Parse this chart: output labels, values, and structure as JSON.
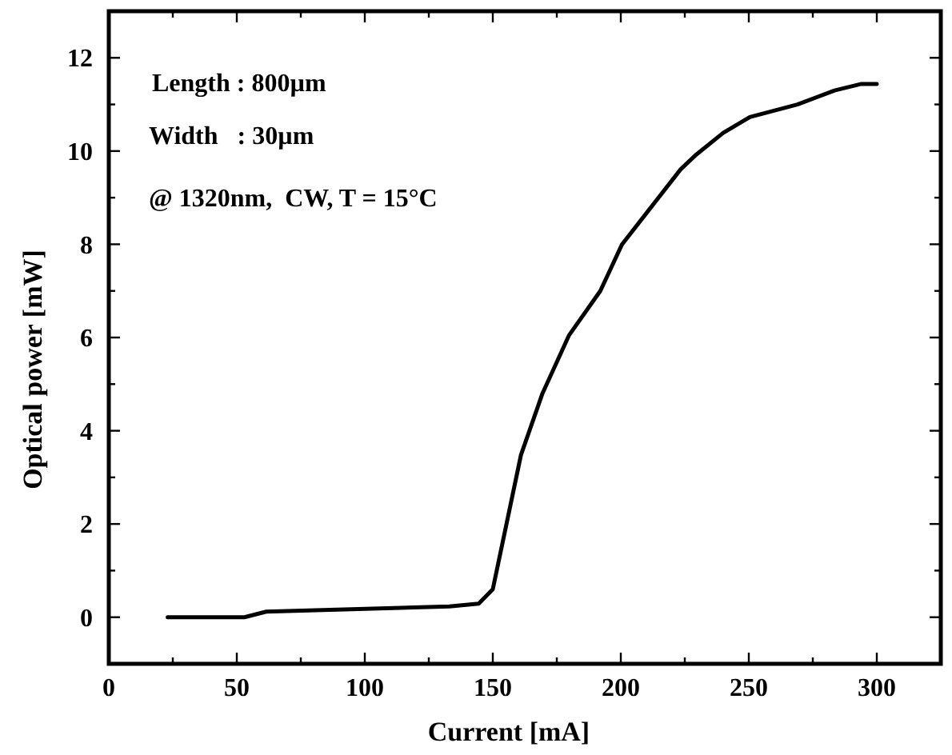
{
  "chart_data": {
    "type": "line",
    "xlabel": "Current [mA]",
    "ylabel": "Optical power [mW]",
    "annotations": [
      "Length : 800µm",
      "Width   : 30µm",
      "@ 1320nm,  CW, T = 15°C"
    ],
    "x": [
      23,
      53,
      61.5,
      133,
      144.5,
      150,
      161,
      169.4,
      179.8,
      192,
      200.5,
      210.9,
      223.4,
      229.6,
      240,
      250.4,
      269,
      283.5,
      294,
      300
    ],
    "series": [
      {
        "color": "#000000",
        "values": [
          0,
          0,
          0.12,
          0.23,
          0.29,
          0.6,
          3.48,
          4.8,
          6.05,
          7.0,
          8.0,
          8.73,
          9.61,
          9.93,
          10.39,
          10.73,
          11.0,
          11.3,
          11.44,
          11.44
        ]
      }
    ],
    "xlim": [
      0,
      325
    ],
    "ylim": [
      -1,
      13
    ],
    "xticks": [
      0,
      {
        "value": 25,
        "label": null
      },
      50,
      {
        "value": 75,
        "label": null
      },
      100,
      {
        "value": 125,
        "label": null
      },
      150,
      {
        "value": 175,
        "label": null
      },
      200,
      {
        "value": 225,
        "label": null
      },
      250,
      {
        "value": 275,
        "label": null
      },
      300
    ],
    "yticks": [
      0,
      {
        "value": 1,
        "label": null
      },
      2,
      {
        "value": 3,
        "label": null
      },
      4,
      {
        "value": 5,
        "label": null
      },
      6,
      {
        "value": 7,
        "label": null
      },
      8,
      {
        "value": 9,
        "label": null
      },
      10,
      {
        "value": 11,
        "label": null
      },
      12
    ],
    "grid": false,
    "marker": "none",
    "line_style": "solid"
  }
}
